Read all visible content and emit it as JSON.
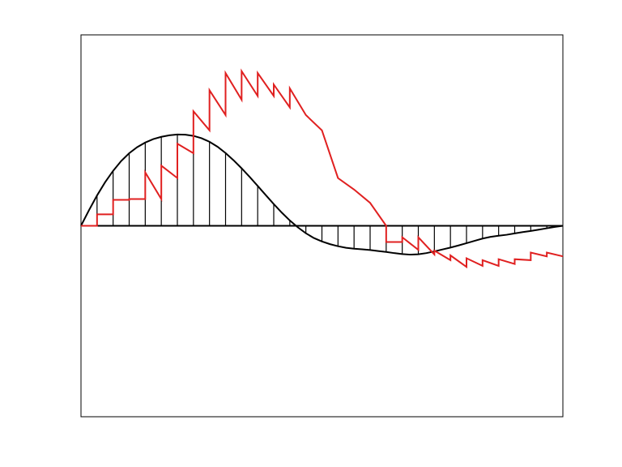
{
  "chart_data": {
    "type": "line",
    "title": "",
    "xlabel": "",
    "ylabel": "",
    "xlim": [
      0,
      30
    ],
    "ylim": [
      -1,
      1
    ],
    "grid": false,
    "legend": "none",
    "axis_ticks": "none",
    "colors": {
      "frame": "#000000",
      "stems": "#000000",
      "smooth_curve": "#000000",
      "sawtooth_curve": "#e02020",
      "background": "#ffffff"
    },
    "series": [
      {
        "style": "smooth line",
        "color": "#000000",
        "x": [
          0,
          0.5,
          1,
          1.5,
          2,
          2.5,
          3,
          3.5,
          4,
          4.5,
          5,
          5.5,
          6,
          6.5,
          7,
          7.5,
          8,
          8.5,
          9,
          9.5,
          10,
          10.5,
          11,
          11.5,
          12,
          12.5,
          13,
          13.5,
          14,
          14.5,
          15,
          15.5,
          16,
          16.5,
          17,
          17.5,
          18,
          18.5,
          19,
          19.5,
          20,
          20.5,
          21,
          21.5,
          22,
          22.5,
          23,
          23.5,
          24,
          24.5,
          25,
          25.5,
          26,
          26.5,
          27,
          27.5,
          28,
          28.5,
          29,
          29.5,
          30
        ],
        "y": [
          0,
          0.082,
          0.159,
          0.228,
          0.288,
          0.339,
          0.38,
          0.412,
          0.436,
          0.454,
          0.466,
          0.474,
          0.478,
          0.477,
          0.471,
          0.459,
          0.44,
          0.414,
          0.381,
          0.343,
          0.301,
          0.256,
          0.209,
          0.161,
          0.114,
          0.069,
          0.028,
          -0.008,
          -0.039,
          -0.064,
          -0.082,
          -0.096,
          -0.107,
          -0.115,
          -0.12,
          -0.123,
          -0.127,
          -0.132,
          -0.137,
          -0.143,
          -0.148,
          -0.151,
          -0.149,
          -0.143,
          -0.134,
          -0.124,
          -0.114,
          -0.103,
          -0.091,
          -0.079,
          -0.067,
          -0.058,
          -0.052,
          -0.047,
          -0.04,
          -0.033,
          -0.027,
          -0.02,
          -0.013,
          -0.006,
          0
        ]
      },
      {
        "style": "stems",
        "color": "#000000",
        "x": [
          0,
          1,
          2,
          3,
          4,
          5,
          6,
          7,
          8,
          9,
          10,
          11,
          12,
          13,
          14,
          15,
          16,
          17,
          18,
          19,
          20,
          21,
          22,
          23,
          24,
          25,
          26,
          27,
          28,
          29,
          30
        ],
        "y": [
          0,
          0.159,
          0.288,
          0.38,
          0.436,
          0.466,
          0.478,
          0.471,
          0.44,
          0.381,
          0.301,
          0.209,
          0.114,
          0.028,
          -0.039,
          -0.082,
          -0.107,
          -0.12,
          -0.127,
          -0.137,
          -0.148,
          -0.149,
          -0.134,
          -0.114,
          -0.091,
          -0.067,
          -0.052,
          -0.04,
          -0.027,
          -0.013,
          0
        ]
      },
      {
        "style": "sawtooth line",
        "color": "#e02020",
        "x": [
          0,
          1,
          1,
          2,
          2,
          3,
          3,
          4,
          4,
          5,
          5,
          6,
          6,
          7,
          7,
          8,
          8,
          9,
          9,
          10,
          10,
          11,
          11,
          12,
          12,
          13,
          13,
          14,
          14,
          15,
          15,
          16,
          16,
          17,
          17,
          18,
          18,
          19,
          19,
          20,
          20,
          21,
          21,
          22,
          22,
          23,
          23,
          24,
          24,
          25,
          25,
          26,
          26,
          27,
          27,
          28,
          28,
          29,
          29,
          30
        ],
        "y": [
          0,
          0,
          0.06,
          0.06,
          0.136,
          0.136,
          0.14,
          0.14,
          0.28,
          0.14,
          0.315,
          0.25,
          0.43,
          0.38,
          0.6,
          0.5,
          0.71,
          0.58,
          0.8,
          0.66,
          0.81,
          0.68,
          0.8,
          0.68,
          0.74,
          0.62,
          0.72,
          0.58,
          0.58,
          0.5,
          0.5,
          0.25,
          0.25,
          0.19,
          0.19,
          0.12,
          0.12,
          0.0,
          -0.085,
          -0.085,
          -0.06,
          -0.126,
          -0.06,
          -0.15,
          -0.13,
          -0.18,
          -0.155,
          -0.215,
          -0.17,
          -0.21,
          -0.18,
          -0.21,
          -0.175,
          -0.2,
          -0.175,
          -0.18,
          -0.14,
          -0.16,
          -0.14,
          -0.16
        ]
      }
    ]
  }
}
